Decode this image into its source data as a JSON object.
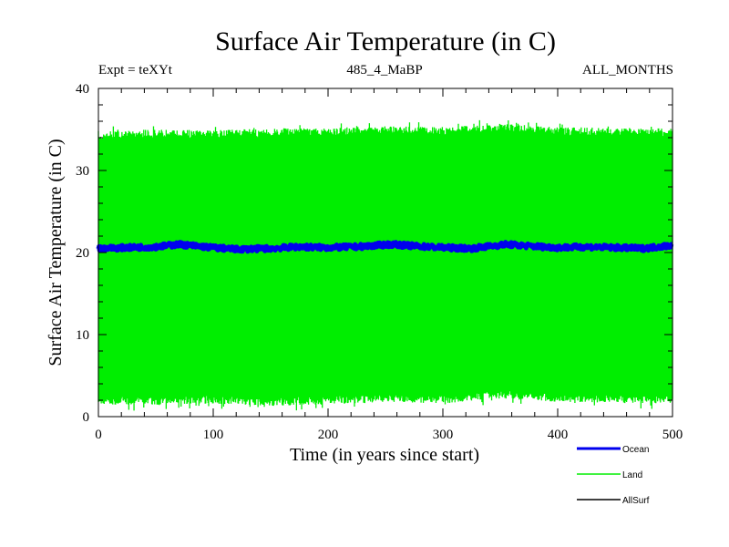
{
  "chart_data": {
    "type": "line",
    "title": "Surface Air Temperature (in C)",
    "header": {
      "left": "Expt = teXYt",
      "center": "485_4_MaBP",
      "right": "ALL_MONTHS"
    },
    "xlabel": "Time (in years since start)",
    "ylabel": "Surface Air Temperature (in C)",
    "xlim": [
      0,
      500
    ],
    "ylim": [
      0,
      40
    ],
    "x_ticks": [
      "0",
      "100",
      "200",
      "300",
      "400",
      "500"
    ],
    "y_ticks": [
      "0",
      "10",
      "20",
      "30",
      "40"
    ],
    "grid": false,
    "legend_position": "bottom-right",
    "series": [
      {
        "name": "Land",
        "color": "#00ee00",
        "style": "monthly oscillation band",
        "x": [
          0,
          50,
          100,
          150,
          200,
          250,
          300,
          350,
          400,
          450,
          500
        ],
        "upper": [
          34.8,
          35.0,
          34.9,
          35.1,
          35.2,
          35.4,
          35.3,
          35.7,
          35.3,
          35.2,
          35.1
        ],
        "lower": [
          1.5,
          1.4,
          1.6,
          1.3,
          1.5,
          1.8,
          1.6,
          2.2,
          1.8,
          1.7,
          1.6
        ]
      },
      {
        "name": "Ocean",
        "color": "#0000ee",
        "x": [
          0,
          25,
          50,
          70,
          100,
          120,
          150,
          175,
          200,
          225,
          255,
          275,
          300,
          325,
          355,
          375,
          400,
          425,
          450,
          475,
          500
        ],
        "y": [
          20.5,
          20.6,
          20.7,
          21.0,
          20.6,
          20.4,
          20.5,
          20.7,
          20.6,
          20.7,
          21.0,
          20.8,
          20.6,
          20.5,
          21.0,
          20.8,
          20.6,
          20.7,
          20.6,
          20.5,
          20.9
        ]
      },
      {
        "name": "AllSurf",
        "color": "#000000",
        "x": [],
        "y": []
      }
    ]
  }
}
